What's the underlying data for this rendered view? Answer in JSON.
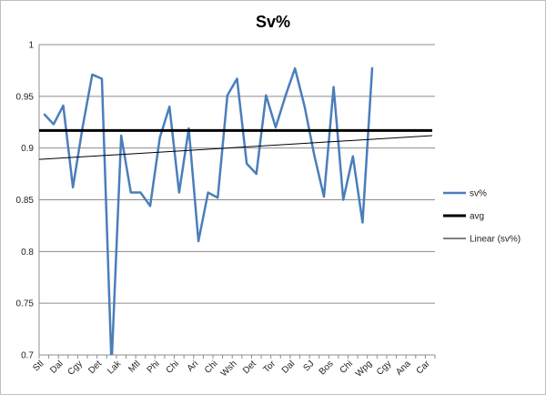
{
  "chart_data": {
    "type": "line",
    "title": "Sv%",
    "xlabel": "",
    "ylabel": "",
    "ylim": [
      0.7,
      1.0
    ],
    "yticks": [
      0.7,
      0.75,
      0.8,
      0.85,
      0.9,
      0.95,
      1.0
    ],
    "ytick_labels": [
      "0.7",
      "0.75",
      "0.8",
      "0.85",
      "0.9",
      "0.95",
      "1"
    ],
    "grid": true,
    "legend_position": "right",
    "categories": [
      "Stl",
      "",
      "Dal",
      "",
      "Cgy",
      "",
      "Det",
      "",
      "Lak",
      "",
      "Mtl",
      "",
      "Phi",
      "",
      "Chi",
      "",
      "Ari",
      "",
      "Chi",
      "",
      "Wsh",
      "",
      "Det",
      "",
      "Tor",
      "",
      "Dal",
      "",
      "SJ",
      "",
      "Bos",
      "",
      "Chi",
      "",
      "Wpg",
      "",
      "Cgy",
      "",
      "Ana",
      "",
      "Car"
    ],
    "series": [
      {
        "name": "sv%",
        "kind": "data",
        "color": "#4a7ebb",
        "values": [
          0.933,
          0.923,
          0.941,
          0.862,
          0.92,
          0.971,
          0.967,
          0.69,
          0.912,
          0.857,
          0.857,
          0.844,
          0.91,
          0.94,
          0.857,
          0.919,
          0.81,
          0.857,
          0.852,
          0.951,
          0.967,
          0.885,
          0.875,
          0.951,
          0.92,
          0.95,
          0.977,
          0.94,
          0.893,
          0.853,
          0.959,
          0.85,
          0.892,
          0.828,
          0.978,
          null,
          null,
          null,
          null,
          null,
          null
        ]
      },
      {
        "name": "avg",
        "kind": "avg",
        "color": "#000000",
        "value": 0.917
      },
      {
        "name": "Linear (sv%)",
        "kind": "trend",
        "color": "#000000",
        "start": 0.889,
        "end": 0.912
      }
    ]
  }
}
